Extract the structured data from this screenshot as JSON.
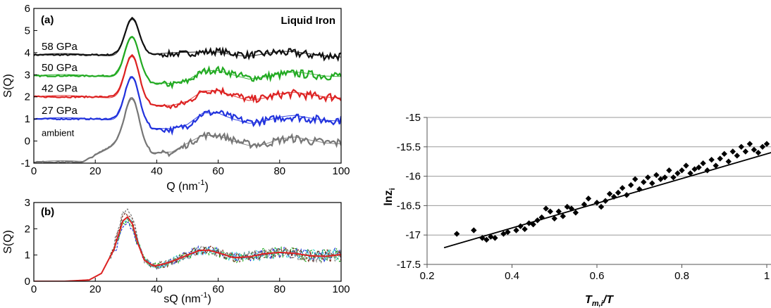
{
  "chart_data": [
    {
      "type": "line",
      "panel_label": "(a)",
      "title": "Liquid Iron",
      "xlabel": "Q (nm",
      "xlabel_sup": "-1",
      "xlabel_end": ")",
      "ylabel": "S(Q)",
      "xlim": [
        0,
        100
      ],
      "ylim": [
        -1,
        6
      ],
      "xticks": [
        "0",
        "20",
        "40",
        "60",
        "80",
        "100"
      ],
      "yticks": [
        "-1",
        "0",
        "1",
        "2",
        "3",
        "4",
        "5",
        "6"
      ],
      "series": [
        {
          "name": "58 GPa",
          "color": "#111111",
          "offset": 3.9,
          "peak": 1.65,
          "data": [
            [
              40,
              0.02
            ],
            [
              50,
              0.06
            ],
            [
              55,
              0.12
            ],
            [
              60,
              0.16
            ],
            [
              65,
              0.06
            ],
            [
              70,
              -0.02
            ],
            [
              75,
              0.05
            ],
            [
              80,
              0.12
            ],
            [
              85,
              0.08
            ],
            [
              90,
              0.0
            ],
            [
              95,
              -0.04
            ],
            [
              100,
              -0.05
            ]
          ]
        },
        {
          "name": "50 GPa",
          "color": "#22aa22",
          "offset": 2.95,
          "peak": 1.85,
          "data": [
            [
              40,
              -0.35
            ],
            [
              45,
              -0.4
            ],
            [
              50,
              -0.25
            ],
            [
              55,
              0.2
            ],
            [
              60,
              0.28
            ],
            [
              65,
              0.1
            ],
            [
              70,
              -0.1
            ],
            [
              75,
              -0.05
            ],
            [
              80,
              0.05
            ],
            [
              85,
              0.12
            ],
            [
              90,
              0.05
            ],
            [
              95,
              0.0
            ],
            [
              100,
              0.02
            ]
          ]
        },
        {
          "name": "42 GPa",
          "color": "#dd2222",
          "offset": 2.0,
          "peak": 1.95,
          "data": [
            [
              40,
              -0.4
            ],
            [
              45,
              -0.45
            ],
            [
              50,
              -0.25
            ],
            [
              55,
              0.25
            ],
            [
              60,
              0.32
            ],
            [
              65,
              0.1
            ],
            [
              70,
              -0.12
            ],
            [
              75,
              -0.05
            ],
            [
              80,
              0.1
            ],
            [
              85,
              0.15
            ],
            [
              90,
              0.05
            ],
            [
              95,
              0.0
            ],
            [
              100,
              0.0
            ]
          ]
        },
        {
          "name": "27 GPa",
          "color": "#2233dd",
          "offset": 1.0,
          "peak": 2.0,
          "data": [
            [
              40,
              -0.45
            ],
            [
              45,
              -0.5
            ],
            [
              50,
              -0.3
            ],
            [
              55,
              0.25
            ],
            [
              60,
              0.3
            ],
            [
              65,
              0.05
            ],
            [
              70,
              -0.15
            ],
            [
              75,
              -0.1
            ],
            [
              80,
              0.05
            ],
            [
              85,
              0.1
            ],
            [
              90,
              0.0
            ],
            [
              95,
              -0.05
            ],
            [
              100,
              -0.05
            ]
          ]
        },
        {
          "name": "ambient",
          "color": "#777777",
          "offset": 0.0,
          "peak": 2.05,
          "data": [
            [
              40,
              -0.55
            ],
            [
              45,
              -0.55
            ],
            [
              50,
              -0.15
            ],
            [
              55,
              0.25
            ],
            [
              60,
              0.28
            ],
            [
              65,
              0.05
            ],
            [
              70,
              -0.15
            ],
            [
              75,
              -0.15
            ],
            [
              80,
              0.05
            ],
            [
              85,
              0.12
            ],
            [
              90,
              0.0
            ],
            [
              95,
              -0.08
            ],
            [
              100,
              -0.08
            ]
          ]
        }
      ]
    },
    {
      "type": "line",
      "panel_label": "(b)",
      "xlabel": "sQ (nm",
      "xlabel_sup": "-1",
      "xlabel_end": ")",
      "ylabel": "S(Q)",
      "xlim": [
        0,
        100
      ],
      "ylim": [
        0,
        3
      ],
      "xticks": [
        "0",
        "20",
        "40",
        "60",
        "80",
        "100"
      ],
      "yticks": [
        "0",
        "1",
        "2",
        "3"
      ],
      "fit_color": "#dd2222",
      "noise_colors": [
        "#2233dd",
        "#22aa22",
        "#22cccc",
        "#7a2a1a",
        "#777777"
      ],
      "data": [
        [
          0,
          0
        ],
        [
          10,
          0
        ],
        [
          18,
          0.05
        ],
        [
          22,
          0.3
        ],
        [
          26,
          1.2
        ],
        [
          29,
          2.3
        ],
        [
          30.5,
          2.45
        ],
        [
          32,
          2.2
        ],
        [
          34,
          1.4
        ],
        [
          36,
          0.8
        ],
        [
          39,
          0.58
        ],
        [
          42,
          0.65
        ],
        [
          46,
          0.8
        ],
        [
          50,
          1.0
        ],
        [
          54,
          1.18
        ],
        [
          57,
          1.18
        ],
        [
          61,
          1.05
        ],
        [
          65,
          0.9
        ],
        [
          70,
          0.93
        ],
        [
          75,
          1.05
        ],
        [
          80,
          1.1
        ],
        [
          85,
          1.06
        ],
        [
          90,
          0.97
        ],
        [
          95,
          0.95
        ],
        [
          100,
          1.02
        ]
      ]
    },
    {
      "type": "scatter",
      "xlabel": "T",
      "xlabel_sub": "m,i",
      "xlabel_end": "/T",
      "ylabel": "lnz",
      "ylabel_sub": "i",
      "xlim": [
        0.2,
        1.0
      ],
      "ylim": [
        -17.5,
        -15
      ],
      "xticks": [
        "0.2",
        "0.4",
        "0.6",
        "0.8",
        "1"
      ],
      "yticks": [
        "-15",
        "-15.5",
        "-16",
        "-16.5",
        "-17",
        "-17.5"
      ],
      "grid": true,
      "fit": {
        "slope": 2.1,
        "intercept": -17.72
      },
      "points": [
        [
          0.27,
          -16.98
        ],
        [
          0.31,
          -16.92
        ],
        [
          0.33,
          -17.05
        ],
        [
          0.34,
          -17.08
        ],
        [
          0.35,
          -17.03
        ],
        [
          0.36,
          -17.05
        ],
        [
          0.38,
          -16.98
        ],
        [
          0.39,
          -16.95
        ],
        [
          0.41,
          -16.92
        ],
        [
          0.42,
          -16.85
        ],
        [
          0.43,
          -16.9
        ],
        [
          0.44,
          -16.8
        ],
        [
          0.45,
          -16.82
        ],
        [
          0.46,
          -16.75
        ],
        [
          0.47,
          -16.7
        ],
        [
          0.48,
          -16.55
        ],
        [
          0.49,
          -16.6
        ],
        [
          0.5,
          -16.72
        ],
        [
          0.51,
          -16.6
        ],
        [
          0.52,
          -16.68
        ],
        [
          0.53,
          -16.52
        ],
        [
          0.54,
          -16.55
        ],
        [
          0.55,
          -16.62
        ],
        [
          0.57,
          -16.48
        ],
        [
          0.58,
          -16.38
        ],
        [
          0.6,
          -16.45
        ],
        [
          0.61,
          -16.52
        ],
        [
          0.62,
          -16.42
        ],
        [
          0.63,
          -16.3
        ],
        [
          0.64,
          -16.35
        ],
        [
          0.65,
          -16.28
        ],
        [
          0.66,
          -16.2
        ],
        [
          0.67,
          -16.32
        ],
        [
          0.68,
          -16.15
        ],
        [
          0.69,
          -16.05
        ],
        [
          0.7,
          -16.22
        ],
        [
          0.71,
          -16.1
        ],
        [
          0.72,
          -16.02
        ],
        [
          0.73,
          -16.12
        ],
        [
          0.74,
          -15.98
        ],
        [
          0.75,
          -16.05
        ],
        [
          0.76,
          -16.02
        ],
        [
          0.77,
          -15.9
        ],
        [
          0.78,
          -16.02
        ],
        [
          0.79,
          -15.95
        ],
        [
          0.8,
          -15.9
        ],
        [
          0.81,
          -15.82
        ],
        [
          0.82,
          -15.95
        ],
        [
          0.83,
          -15.88
        ],
        [
          0.84,
          -15.85
        ],
        [
          0.85,
          -15.78
        ],
        [
          0.86,
          -15.9
        ],
        [
          0.87,
          -15.72
        ],
        [
          0.88,
          -15.82
        ],
        [
          0.89,
          -15.7
        ],
        [
          0.9,
          -15.62
        ],
        [
          0.91,
          -15.75
        ],
        [
          0.92,
          -15.58
        ],
        [
          0.93,
          -15.65
        ],
        [
          0.94,
          -15.5
        ],
        [
          0.95,
          -15.58
        ],
        [
          0.96,
          -15.45
        ],
        [
          0.97,
          -15.55
        ],
        [
          0.98,
          -15.6
        ],
        [
          0.99,
          -15.5
        ],
        [
          1.0,
          -15.45
        ]
      ]
    }
  ]
}
